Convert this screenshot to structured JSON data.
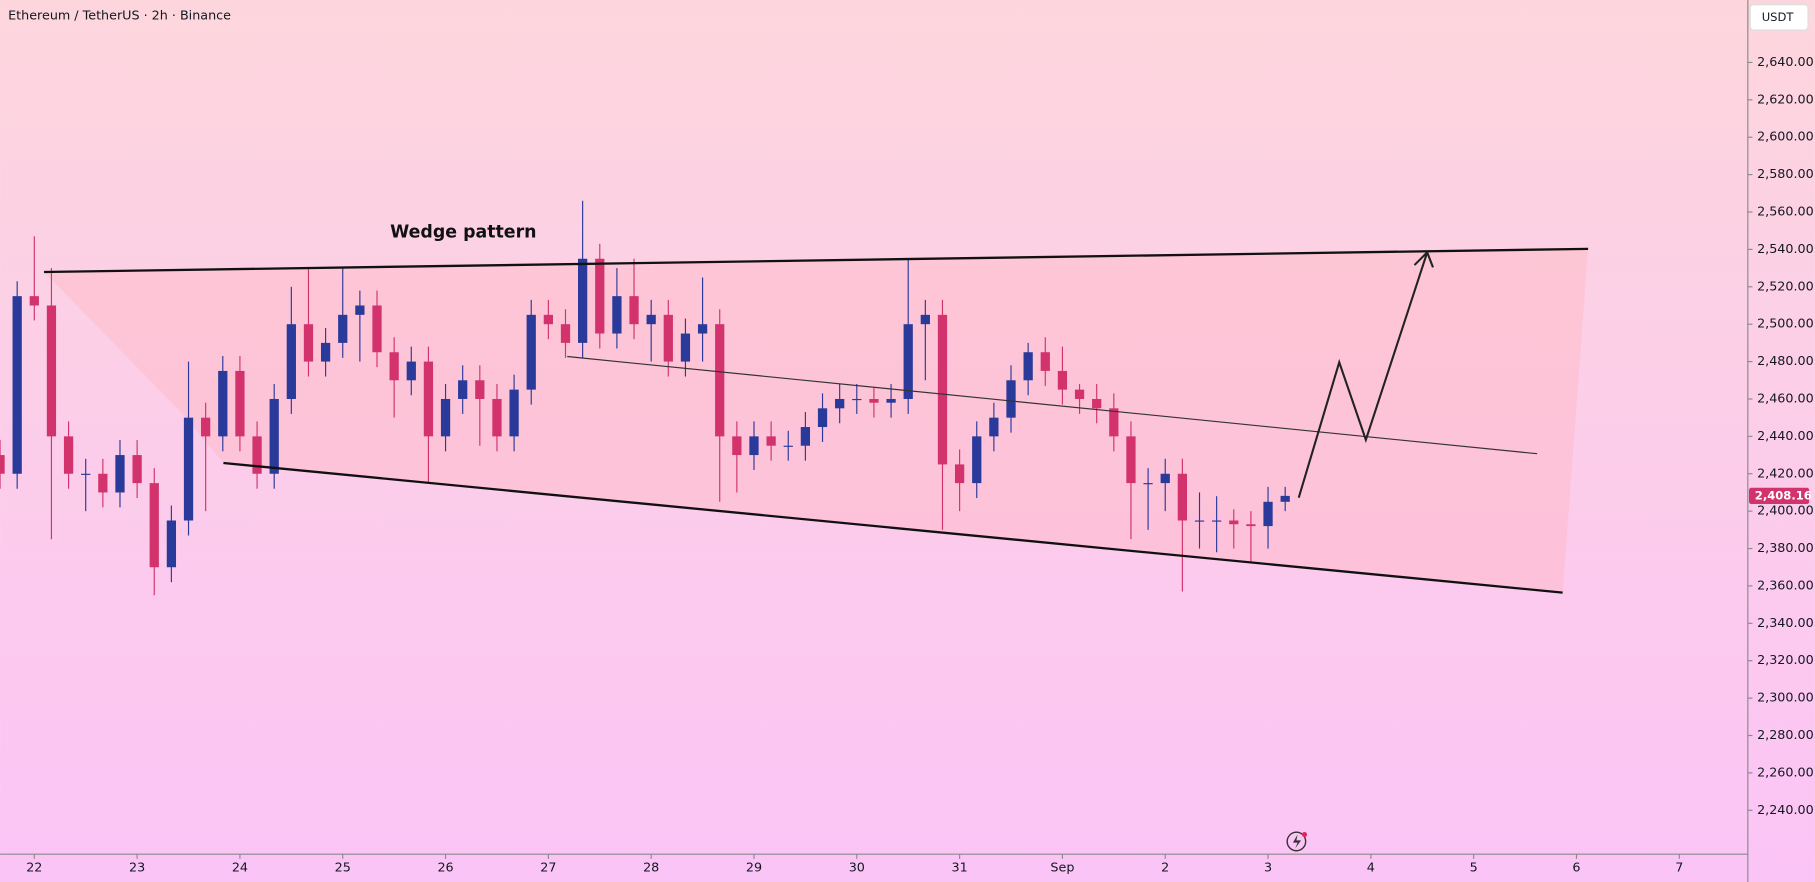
{
  "chart_data": {
    "type": "candlestick",
    "title": "Ethereum / TetherUS · 2h · Binance",
    "currency": "USDT",
    "annotation": "Wedge pattern",
    "up_color": "#2a3a9a",
    "down_color": "#d3336d",
    "x": [
      -8,
      -4,
      0,
      4,
      8,
      12,
      16,
      20,
      24,
      28,
      32,
      36,
      40,
      44,
      48,
      52,
      56,
      60,
      64,
      68,
      72,
      76,
      80,
      84,
      88,
      92,
      96,
      100,
      104,
      108,
      112,
      116,
      120,
      124,
      128,
      132,
      136,
      140,
      144,
      148,
      152,
      156,
      160,
      164,
      168,
      172,
      176,
      180,
      184,
      188,
      192,
      196,
      200,
      204,
      208,
      212,
      216,
      220,
      224,
      228,
      232,
      236,
      240,
      244,
      248,
      252,
      256,
      260,
      264,
      268,
      272,
      276,
      280,
      284,
      288,
      292
    ],
    "open": [
      2430,
      2420,
      2515,
      2510,
      2440,
      2420,
      2420,
      2410,
      2430,
      2415,
      2370,
      2395,
      2450,
      2440,
      2475,
      2440,
      2420,
      2460,
      2500,
      2480,
      2490,
      2505,
      2510,
      2485,
      2470,
      2480,
      2440,
      2460,
      2470,
      2460,
      2440,
      2465,
      2505,
      2500,
      2490,
      2535,
      2495,
      2515,
      2500,
      2505,
      2480,
      2495,
      2500,
      2440,
      2430,
      2440,
      2435,
      2435,
      2445,
      2455,
      2460,
      2460,
      2458,
      2460,
      2500,
      2505,
      2425,
      2415,
      2440,
      2450,
      2470,
      2485,
      2475,
      2465,
      2460,
      2455,
      2440,
      2415,
      2415,
      2420,
      2395,
      2395,
      2395,
      2393,
      2392,
      2405
    ],
    "high": [
      2438,
      2523,
      2547,
      2530,
      2448,
      2428,
      2428,
      2438,
      2438,
      2423,
      2403,
      2480,
      2458,
      2483,
      2483,
      2448,
      2468,
      2520,
      2530,
      2498,
      2530,
      2518,
      2518,
      2493,
      2488,
      2488,
      2468,
      2478,
      2478,
      2468,
      2473,
      2513,
      2513,
      2508,
      2566,
      2543,
      2530,
      2535,
      2513,
      2513,
      2503,
      2525,
      2508,
      2448,
      2448,
      2448,
      2443,
      2453,
      2463,
      2468,
      2468,
      2466,
      2468,
      2535,
      2513,
      2513,
      2433,
      2448,
      2458,
      2478,
      2490,
      2493,
      2488,
      2468,
      2468,
      2463,
      2448,
      2423,
      2428,
      2428,
      2410,
      2408,
      2401,
      2400,
      2413,
      2413
    ],
    "low": [
      2412,
      2412,
      2502,
      2385,
      2412,
      2400,
      2402,
      2402,
      2407,
      2355,
      2362,
      2387,
      2400,
      2432,
      2432,
      2412,
      2412,
      2452,
      2472,
      2472,
      2482,
      2480,
      2477,
      2450,
      2462,
      2415,
      2432,
      2452,
      2435,
      2432,
      2432,
      2457,
      2492,
      2482,
      2482,
      2487,
      2487,
      2492,
      2480,
      2472,
      2472,
      2480,
      2405,
      2410,
      2422,
      2427,
      2427,
      2427,
      2437,
      2447,
      2452,
      2450,
      2450,
      2452,
      2470,
      2390,
      2400,
      2407,
      2432,
      2442,
      2462,
      2467,
      2457,
      2452,
      2447,
      2432,
      2385,
      2390,
      2400,
      2357,
      2380,
      2378,
      2380,
      2372,
      2380,
      2400
    ],
    "close": [
      2420,
      2515,
      2510,
      2440,
      2420,
      2420,
      2410,
      2430,
      2415,
      2370,
      2395,
      2450,
      2440,
      2475,
      2440,
      2420,
      2460,
      2500,
      2480,
      2490,
      2505,
      2510,
      2485,
      2470,
      2480,
      2440,
      2460,
      2470,
      2460,
      2440,
      2465,
      2505,
      2500,
      2490,
      2535,
      2495,
      2515,
      2500,
      2505,
      2480,
      2495,
      2500,
      2440,
      2430,
      2440,
      2435,
      2435,
      2445,
      2455,
      2460,
      2460,
      2458,
      2460,
      2500,
      2505,
      2425,
      2415,
      2440,
      2450,
      2470,
      2485,
      2475,
      2465,
      2460,
      2455,
      2440,
      2415,
      2415,
      2420,
      2395,
      2395,
      2395,
      2393,
      2392,
      2405,
      2408.16
    ],
    "last_price": {
      "value": 2408.16,
      "label": "2,408.16"
    },
    "xlim": [
      -8,
      400
    ],
    "xticks": [
      {
        "value": 0,
        "label": "22"
      },
      {
        "value": 24,
        "label": "23"
      },
      {
        "value": 48,
        "label": "24"
      },
      {
        "value": 72,
        "label": "25"
      },
      {
        "value": 96,
        "label": "26"
      },
      {
        "value": 120,
        "label": "27"
      },
      {
        "value": 144,
        "label": "28"
      },
      {
        "value": 168,
        "label": "29"
      },
      {
        "value": 192,
        "label": "30"
      },
      {
        "value": 216,
        "label": "31"
      },
      {
        "value": 240,
        "label": "Sep"
      },
      {
        "value": 264,
        "label": "2"
      },
      {
        "value": 288,
        "label": "3"
      },
      {
        "value": 312,
        "label": "4"
      },
      {
        "value": 336,
        "label": "5"
      },
      {
        "value": 360,
        "label": "6"
      },
      {
        "value": 384,
        "label": "7"
      }
    ],
    "ylim": [
      2216.5,
      2673.4
    ],
    "yticks": [
      {
        "value": 2240,
        "label": "2,240.00"
      },
      {
        "value": 2260,
        "label": "2,260.00"
      },
      {
        "value": 2280,
        "label": "2,280.00"
      },
      {
        "value": 2300,
        "label": "2,300.00"
      },
      {
        "value": 2320,
        "label": "2,320.00"
      },
      {
        "value": 2340,
        "label": "2,340.00"
      },
      {
        "value": 2360,
        "label": "2,360.00"
      },
      {
        "value": 2380,
        "label": "2,380.00"
      },
      {
        "value": 2400,
        "label": "2,400.00"
      },
      {
        "value": 2420,
        "label": "2,420.00"
      },
      {
        "value": 2440,
        "label": "2,440.00"
      },
      {
        "value": 2460,
        "label": "2,460.00"
      },
      {
        "value": 2480,
        "label": "2,480.00"
      },
      {
        "value": 2500,
        "label": "2,500.00"
      },
      {
        "value": 2520,
        "label": "2,520.00"
      },
      {
        "value": 2540,
        "label": "2,540.00"
      },
      {
        "value": 2560,
        "label": "2,560.00"
      },
      {
        "value": 2580,
        "label": "2,580.00"
      },
      {
        "value": 2600,
        "label": "2,600.00"
      },
      {
        "value": 2620,
        "label": "2,620.00"
      },
      {
        "value": 2640,
        "label": "2,640.00"
      }
    ],
    "grid": false
  }
}
